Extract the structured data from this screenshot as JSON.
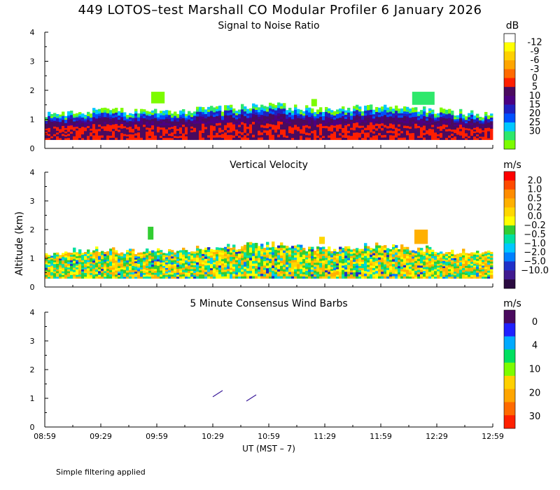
{
  "title": "449 LOTOS–test Marshall CO Modular Profiler  6 January 2026",
  "ylabel": "Altitude (km)",
  "xlabel": "UT  (MST – 7)",
  "footnote": "Simple filtering applied",
  "chart_data": [
    {
      "type": "heatmap",
      "title": "Signal to Noise Ratio",
      "unit": "dB",
      "ylim": [
        0,
        4
      ],
      "yticks": [
        "0",
        "1",
        "2",
        "3",
        "4"
      ],
      "xticks": [
        "08:59",
        "09:29",
        "09:59",
        "10:29",
        "10:59",
        "11:29",
        "11:59",
        "12:29",
        "12:59"
      ],
      "colorbar": {
        "colors": [
          "#7cfc00",
          "#2ee86b",
          "#00c8ff",
          "#0050ff",
          "#2020c0",
          "#4b0082",
          "#4a0a5e",
          "#ff1f00",
          "#ff6a00",
          "#ffa500",
          "#ffd000",
          "#ffff00",
          "#ffffff"
        ],
        "labels": [
          "-12",
          "-9",
          "-6",
          "-3",
          "0",
          "5",
          "10",
          "15",
          "20",
          "25",
          "30"
        ]
      },
      "profile": {
        "times_hours": [
          0,
          0.5,
          1.0,
          1.5,
          2.0,
          2.5,
          3.0,
          3.5,
          4.0
        ],
        "top_altitude_km": [
          1.2,
          1.3,
          1.25,
          1.35,
          1.5,
          1.3,
          1.45,
          1.3,
          1.15
        ]
      }
    },
    {
      "type": "heatmap",
      "title": "Vertical Velocity",
      "unit": "m/s",
      "ylim": [
        0,
        4
      ],
      "yticks": [
        "0",
        "1",
        "2",
        "3",
        "4"
      ],
      "xticks": [
        "08:59",
        "09:29",
        "09:59",
        "10:29",
        "10:59",
        "11:29",
        "11:59",
        "12:29",
        "12:59"
      ],
      "colorbar": {
        "colors": [
          "#ff0000",
          "#ff4a00",
          "#ff8c00",
          "#ffb000",
          "#ffd700",
          "#ffff00",
          "#32cd32",
          "#00e0a0",
          "#00c8ff",
          "#0080ff",
          "#2030c8",
          "#401a90",
          "#2a0a40"
        ],
        "labels": [
          "2.0",
          "1.0",
          "0.5",
          "0.2",
          "0.0",
          "−0.2",
          "−0.5",
          "−1.0",
          "−2.0",
          "−5.0",
          "−10.0"
        ]
      }
    },
    {
      "type": "scatter",
      "title": "5 Minute Consensus Wind Barbs",
      "unit": "m/s",
      "ylim": [
        0,
        4
      ],
      "yticks": [
        "0",
        "1",
        "2",
        "3",
        "4"
      ],
      "xticks": [
        "08:59",
        "09:29",
        "09:59",
        "10:29",
        "10:59",
        "11:29",
        "11:59",
        "12:29",
        "12:59"
      ],
      "colorbar": {
        "colors": [
          "#4a0a5e",
          "#2020ff",
          "#00aaff",
          "#00e060",
          "#7cfc00",
          "#ffd000",
          "#ffa500",
          "#ff6a00",
          "#ff2000"
        ],
        "labels": [
          "0",
          "4",
          "10",
          "20",
          "30"
        ]
      },
      "barbs": [
        {
          "time_hours": 1.55,
          "altitude_km": 1.15,
          "speed_ms": 2
        },
        {
          "time_hours": 1.85,
          "altitude_km": 1.0,
          "speed_ms": 2
        }
      ]
    }
  ]
}
